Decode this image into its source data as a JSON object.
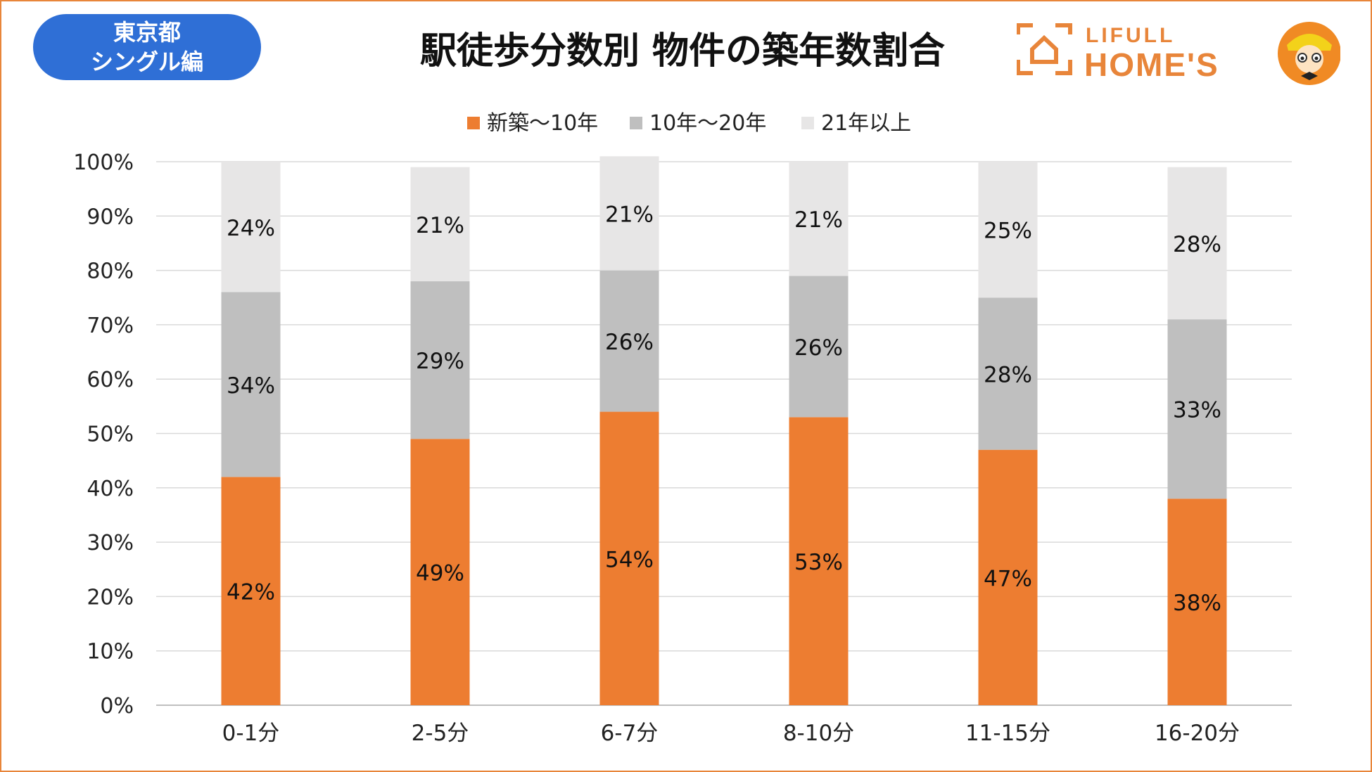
{
  "badge": {
    "line1": "東京都",
    "line2": "シングル編"
  },
  "logo": {
    "brand_top": "LIFULL",
    "brand_bottom": "HOME'S"
  },
  "colors": {
    "new": "#ed7d31",
    "mid": "#bfbfbf",
    "old": "#e7e6e6",
    "accent": "#e8853a",
    "badge": "#2f6fd6"
  },
  "chart_data": {
    "type": "bar",
    "stacked": true,
    "title": "駅徒歩分数別 物件の築年数割合",
    "categories": [
      "0-1分",
      "2-5分",
      "6-7分",
      "8-10分",
      "11-15分",
      "16-20分"
    ],
    "series": [
      {
        "name": "新築～10年",
        "values": [
          42,
          49,
          54,
          53,
          47,
          38
        ],
        "color": "#ed7d31"
      },
      {
        "name": "10年～20年",
        "values": [
          34,
          29,
          26,
          26,
          28,
          33
        ],
        "color": "#bfbfbf"
      },
      {
        "name": "21年以上",
        "values": [
          24,
          21,
          21,
          21,
          25,
          28
        ],
        "color": "#e7e6e6"
      }
    ],
    "ylim": [
      0,
      100
    ],
    "yticks": [
      "0%",
      "10%",
      "20%",
      "30%",
      "40%",
      "50%",
      "60%",
      "70%",
      "80%",
      "90%",
      "100%"
    ],
    "grid": true,
    "legend_position": "top"
  }
}
